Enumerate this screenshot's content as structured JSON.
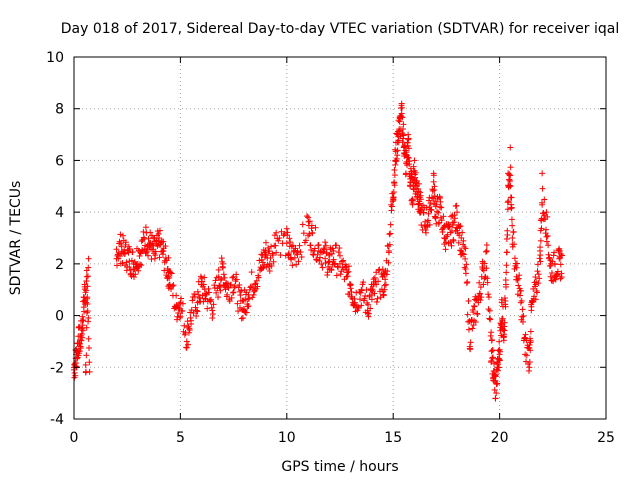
{
  "chart_data": {
    "type": "scatter",
    "title": "Day 018 of 2017, Sidereal Day-to-day VTEC variation (SDTVAR) for receiver iqal",
    "xlabel": "GPS time / hours",
    "ylabel": "SDTVAR / TECUs",
    "xlim": [
      0,
      25
    ],
    "ylim": [
      -4,
      10
    ],
    "xticks": [
      0,
      5,
      10,
      15,
      20,
      25
    ],
    "yticks": [
      -4,
      -2,
      0,
      2,
      4,
      6,
      8,
      10
    ],
    "xtick_labels": [
      "0",
      "5",
      "10",
      "15",
      "20",
      "25"
    ],
    "ytick_labels": [
      "-4",
      "-2",
      "0",
      "2",
      "4",
      "6",
      "8",
      "10"
    ],
    "grid": true,
    "marker": "plus",
    "color": "#ff0000",
    "series": [
      {
        "name": "SDTVAR",
        "x": [
          0.0,
          0.1,
          0.2,
          0.3,
          0.4,
          0.5,
          0.6,
          0.55,
          2.0,
          2.2,
          2.4,
          2.6,
          2.8,
          3.0,
          3.2,
          3.4,
          3.6,
          3.8,
          4.0,
          4.2,
          4.4,
          4.5,
          4.8,
          5.0,
          5.3,
          5.5,
          5.8,
          6.0,
          6.2,
          6.5,
          6.8,
          7.0,
          7.2,
          7.5,
          7.8,
          8.0,
          8.2,
          8.5,
          8.8,
          9.0,
          9.2,
          9.5,
          10.0,
          10.2,
          10.5,
          11.0,
          11.2,
          11.5,
          11.8,
          12.0,
          12.2,
          12.5,
          12.8,
          13.0,
          13.2,
          13.5,
          13.8,
          14.0,
          14.2,
          14.5,
          14.6,
          14.8,
          15.0,
          15.1,
          15.2,
          15.3,
          15.4,
          15.5,
          15.6,
          15.7,
          15.8,
          15.9,
          16.0,
          16.1,
          16.2,
          16.3,
          16.5,
          16.7,
          16.9,
          17.0,
          17.2,
          17.4,
          17.6,
          17.8,
          18.0,
          18.2,
          18.4,
          18.6,
          18.8,
          19.0,
          19.2,
          19.4,
          19.6,
          19.7,
          19.8,
          19.9,
          20.0,
          20.1,
          20.2,
          20.3,
          20.4,
          20.5,
          20.6,
          20.8,
          21.0,
          21.2,
          21.4,
          21.5,
          21.7,
          21.9,
          22.0,
          22.2,
          22.4,
          22.6,
          22.8
        ],
        "y": [
          -2.1,
          -1.5,
          -0.8,
          -1.2,
          -0.2,
          1.2,
          1.5,
          -2.2,
          2.2,
          2.8,
          2.4,
          2.1,
          1.8,
          2.0,
          2.5,
          3.2,
          2.8,
          2.2,
          3.0,
          2.5,
          1.8,
          1.2,
          0.3,
          0.5,
          -1.0,
          -0.2,
          0.5,
          1.2,
          0.8,
          0.2,
          1.5,
          2.0,
          0.8,
          1.5,
          0.3,
          0.2,
          0.8,
          1.2,
          1.8,
          2.5,
          2.0,
          3.2,
          2.8,
          2.2,
          2.5,
          3.8,
          3.2,
          2.5,
          2.2,
          1.8,
          2.5,
          2.0,
          1.5,
          1.2,
          0.5,
          1.0,
          0.2,
          0.8,
          1.2,
          1.5,
          1.0,
          2.5,
          4.5,
          6.0,
          7.0,
          7.5,
          8.2,
          6.5,
          5.5,
          7.0,
          5.0,
          4.5,
          6.0,
          5.2,
          4.8,
          4.0,
          3.5,
          4.2,
          5.5,
          3.8,
          4.2,
          3.0,
          2.8,
          3.5,
          4.0,
          2.5,
          1.8,
          -1.2,
          -0.2,
          0.5,
          1.8,
          2.5,
          -1.8,
          -2.5,
          -3.2,
          -2.0,
          -1.5,
          0.5,
          -0.8,
          1.2,
          5.5,
          6.5,
          3.0,
          1.5,
          0.5,
          -1.5,
          -2.0,
          0.5,
          1.2,
          2.5,
          5.5,
          4.0,
          1.5,
          2.0,
          2.2
        ],
        "trace_y": [
          -2.0,
          -1.7,
          -1.0,
          -1.0,
          -0.3,
          0.8,
          1.2,
          -2.2,
          2.5,
          2.6,
          2.4,
          2.2,
          2.0,
          2.3,
          2.6,
          3.0,
          2.7,
          2.4,
          2.8,
          2.4,
          1.8,
          1.5,
          0.3,
          0.5,
          -0.8,
          0.0,
          0.6,
          1.1,
          0.8,
          0.4,
          1.3,
          1.8,
          1.0,
          1.4,
          0.5,
          0.4,
          0.9,
          1.4,
          1.9,
          2.4,
          2.2,
          3.0,
          2.8,
          2.3,
          2.5,
          3.4,
          3.0,
          2.6,
          2.3,
          2.0,
          2.3,
          2.0,
          1.5,
          1.2,
          0.6,
          0.9,
          0.4,
          0.8,
          1.1,
          1.3,
          1.2,
          2.8,
          4.8,
          6.0,
          6.8,
          7.3,
          7.6,
          6.8,
          5.8,
          6.6,
          5.3,
          4.8,
          5.5,
          5.0,
          4.6,
          4.0,
          3.6,
          4.0,
          5.0,
          4.0,
          4.1,
          3.2,
          3.0,
          3.4,
          3.8,
          2.8,
          2.0,
          -0.8,
          0.0,
          0.6,
          1.6,
          2.2,
          -1.2,
          -2.0,
          -2.8,
          -2.2,
          -1.3,
          0.2,
          -0.5,
          1.0,
          4.5,
          5.8,
          3.2,
          1.6,
          0.6,
          -1.2,
          -1.6,
          0.2,
          1.0,
          2.2,
          4.5,
          3.6,
          1.8,
          1.9,
          2.0
        ]
      }
    ]
  }
}
